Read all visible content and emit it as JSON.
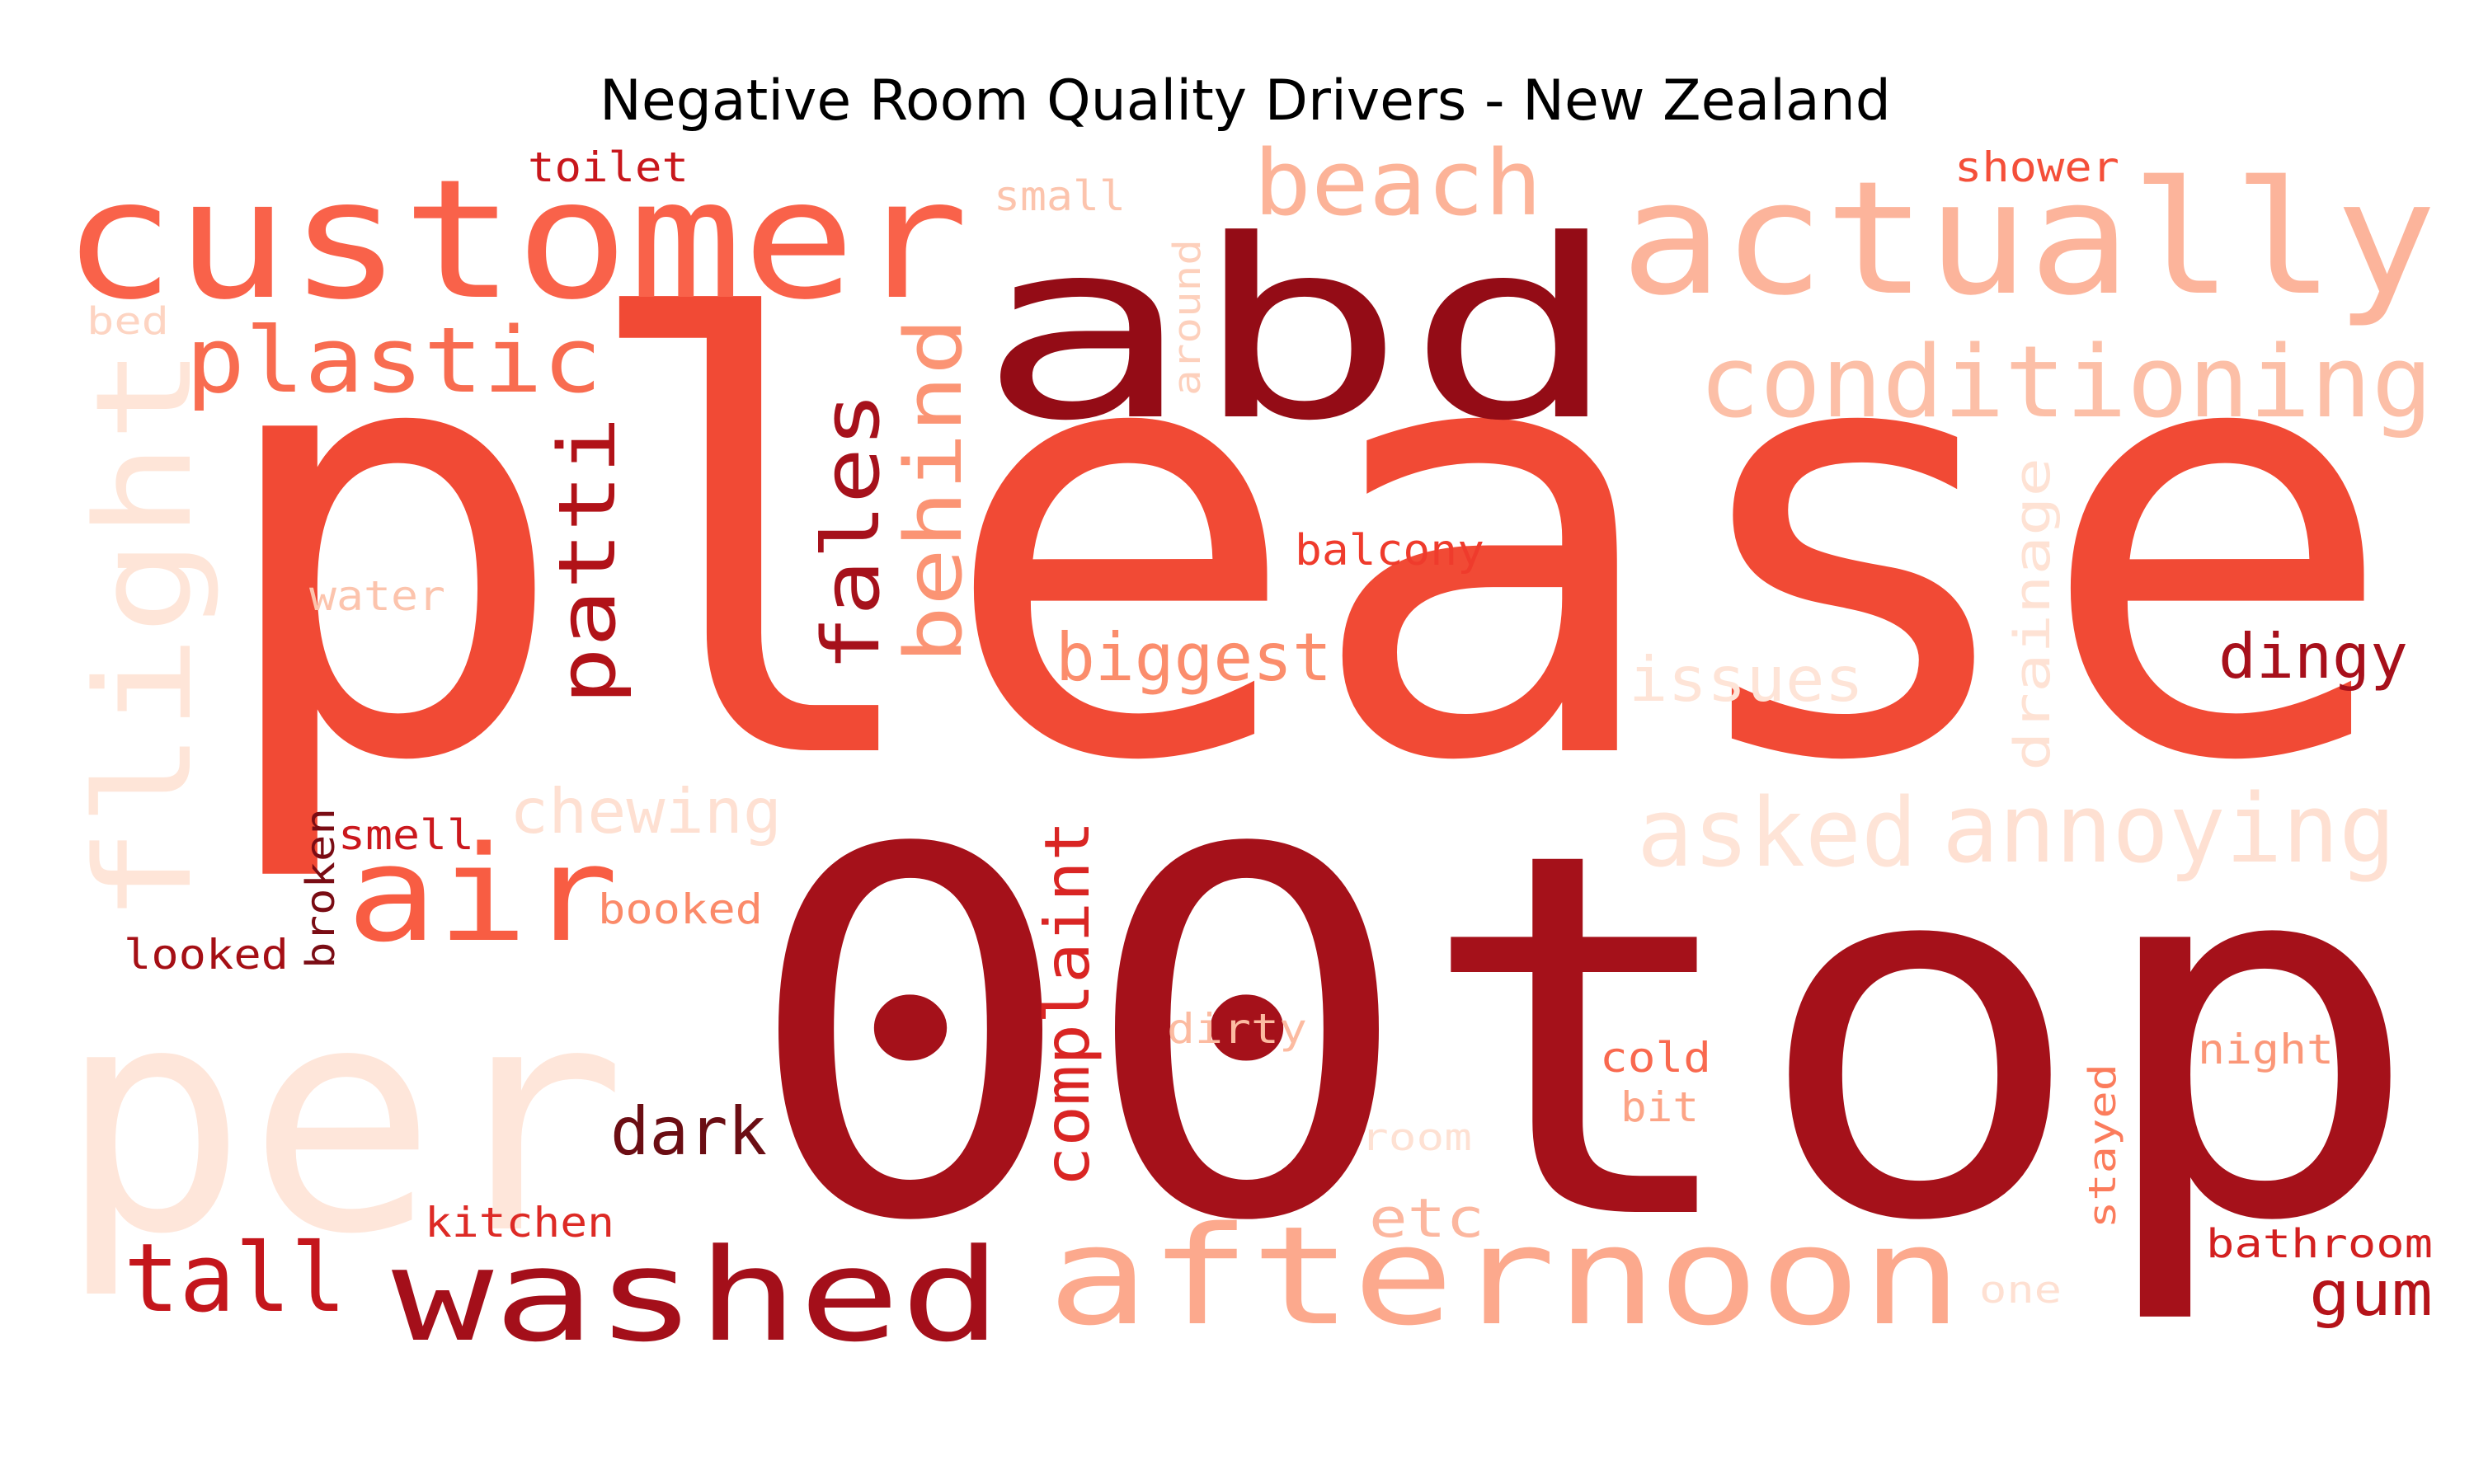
{
  "title": "Negative Room Quality Drivers - New Zealand",
  "words": [
    {
      "text": "please",
      "color": "#f14a35"
    },
    {
      "text": "00top",
      "color": "#a5111a"
    },
    {
      "text": "abd",
      "color": "#940c16"
    },
    {
      "text": "customer",
      "color": "#f9624a"
    },
    {
      "text": "actually",
      "color": "#fcb49b"
    },
    {
      "text": "per",
      "color": "#fee6da"
    },
    {
      "text": "washed",
      "color": "#a40f1a"
    },
    {
      "text": "afternoon",
      "color": "#fca98d"
    },
    {
      "text": "flight",
      "color": "#fee5d8"
    },
    {
      "text": "conditioning",
      "color": "#fcbfa7"
    },
    {
      "text": "beach",
      "color": "#fcb398"
    },
    {
      "text": "plastic",
      "color": "#f86c50"
    },
    {
      "text": "air",
      "color": "#f85d43"
    },
    {
      "text": "patti",
      "color": "#b11218"
    },
    {
      "text": "fales",
      "color": "#a6111b"
    },
    {
      "text": "behind",
      "color": "#fb9474"
    },
    {
      "text": "tall",
      "color": "#c4161c"
    },
    {
      "text": "asked",
      "color": "#fee4d7"
    },
    {
      "text": "annoying",
      "color": "#fee0d2"
    },
    {
      "text": "biggest",
      "color": "#fb8d6c"
    },
    {
      "text": "complaint",
      "color": "#d92523"
    },
    {
      "text": "dark",
      "color": "#6b0d13"
    },
    {
      "text": "chewing",
      "color": "#fee0d2"
    },
    {
      "text": "issues",
      "color": "#fee4d7"
    },
    {
      "text": "dingy",
      "color": "#a7101b"
    },
    {
      "text": "drainage",
      "color": "#fee2d4"
    },
    {
      "text": "gum",
      "color": "#b51319"
    },
    {
      "text": "etc",
      "color": "#fcb79f"
    },
    {
      "text": "balcony",
      "color": "#ef3b2c"
    },
    {
      "text": "toilet",
      "color": "#c8171c"
    },
    {
      "text": "small",
      "color": "#fcc4ad"
    },
    {
      "text": "shower",
      "color": "#f44f39"
    },
    {
      "text": "around",
      "color": "#fdd0bc"
    },
    {
      "text": "water",
      "color": "#fcc4ad"
    },
    {
      "text": "bed",
      "color": "#fdd4c2"
    },
    {
      "text": "smell",
      "color": "#cb181d"
    },
    {
      "text": "broken",
      "color": "#7a0c14"
    },
    {
      "text": "booked",
      "color": "#fb8a69"
    },
    {
      "text": "looked",
      "color": "#a50f15"
    },
    {
      "text": "dirty",
      "color": "#fcbba1"
    },
    {
      "text": "cold",
      "color": "#f9694f"
    },
    {
      "text": "bit",
      "color": "#fca486"
    },
    {
      "text": "night",
      "color": "#fb9778"
    },
    {
      "text": "room",
      "color": "#fee1d3"
    },
    {
      "text": "stayed",
      "color": "#fb7c5c"
    },
    {
      "text": "kitchen",
      "color": "#dd2a25"
    },
    {
      "text": "one",
      "color": "#fee0d2"
    },
    {
      "text": "bathroom",
      "color": "#d32020"
    }
  ]
}
